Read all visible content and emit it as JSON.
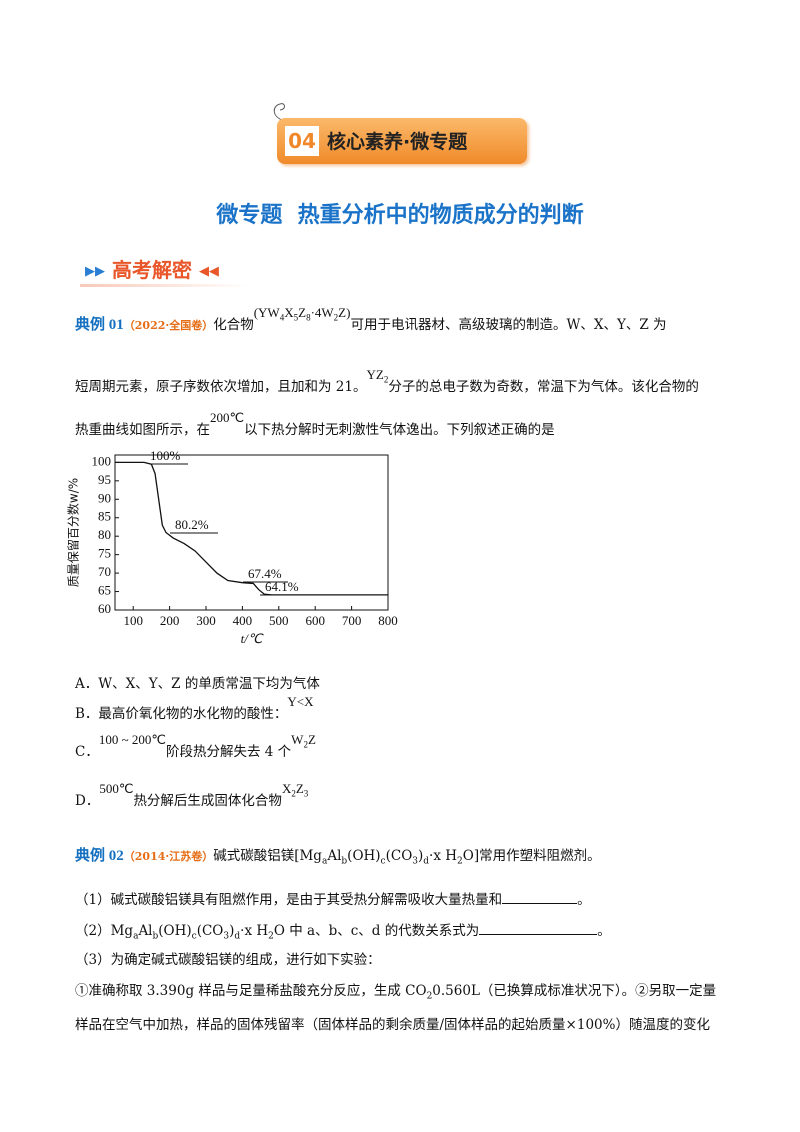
{
  "badge": {
    "number": "04",
    "text": "核心素养·微专题"
  },
  "title": "微专题  热重分析中的物质成分的判断",
  "section": "高考解密",
  "example1": {
    "label": "典例 01",
    "source": "（2022·全国卷）",
    "lines": [
      [
        "化合物",
        {
          "f": [
            "(YW",
            {
              "sub": "4"
            },
            "X",
            {
              "sub": "5"
            },
            "Z",
            {
              "sub": "8"
            },
            "·4W",
            {
              "sub": "2"
            },
            "Z)"
          ]
        },
        "可用于电讯器材、高级玻璃的制造。W、X、Y、Z 为"
      ],
      [
        "短周期元素，原子序数依次增加，且加和为 21。",
        {
          "f": [
            "YZ",
            {
              "sub": "2"
            }
          ]
        },
        "分子的总电子数为奇数，常温下为气体。该化合物的"
      ],
      [
        "热重曲线如图所示，在",
        {
          "f": [
            "200℃"
          ]
        },
        "以下热分解时无刺激性气体逸出。下列叙述正确的是"
      ]
    ],
    "options": [
      [
        "A．W、X、Y、Z 的单质常温下均为气体"
      ],
      [
        "B．最高价氧化物的水化物的酸性：",
        {
          "f": [
            "Y<X"
          ]
        }
      ],
      [
        "C．",
        {
          "f": [
            "100 ~ 200℃"
          ]
        },
        "阶段热分解失去 4 个",
        {
          "f": [
            "W",
            {
              "sub": "2"
            },
            "Z"
          ]
        }
      ],
      [
        "D．",
        {
          "f": [
            "500℃"
          ]
        },
        "热分解后生成固体化合物",
        {
          "f": [
            "X",
            {
              "sub": "2"
            },
            "Z",
            {
              "sub": "3"
            }
          ]
        }
      ]
    ]
  },
  "chart_data": {
    "type": "line",
    "x_label": "t/℃",
    "y_label": "质量保留百分数w/%",
    "x": [
      50,
      130,
      150,
      160,
      170,
      180,
      190,
      210,
      240,
      270,
      300,
      330,
      360,
      400,
      430,
      445,
      460,
      480,
      800
    ],
    "series": [
      {
        "color": "#111111",
        "values": [
          100,
          100,
          99.5,
          97,
          90,
          83,
          81,
          79.5,
          78,
          76,
          73,
          70,
          68,
          67.4,
          67.2,
          65.5,
          64.3,
          64.1,
          64.1
        ]
      }
    ],
    "annotations": [
      "100%",
      "80.2%",
      "67.4%",
      "64.1%"
    ],
    "xlim": [
      50,
      800
    ],
    "ylim": [
      60,
      102
    ],
    "xticks": [
      100,
      200,
      300,
      400,
      500,
      600,
      700,
      800
    ],
    "yticks": [
      60,
      65,
      70,
      75,
      80,
      85,
      90,
      95,
      100
    ]
  },
  "example2": {
    "label": "典例 02",
    "source": "（2014·江苏卷）",
    "intro": [
      "碱式碳酸铝镁[Mg",
      {
        "sub": "a"
      },
      "Al",
      {
        "sub": "b"
      },
      "(OH)",
      {
        "sub": "c"
      },
      "(CO",
      {
        "sub": "3"
      },
      ")",
      {
        "sub": "d"
      },
      "·x H",
      {
        "sub": "2"
      },
      "O]常用作塑料阻燃剂。"
    ],
    "lines": [
      {
        "before": [
          "（1）碱式碳酸铝镁具有阻燃作用，是由于其受热分解需吸收大量热量和"
        ],
        "after": [
          "。"
        ]
      },
      {
        "before": [
          "（2）Mg",
          {
            "sub": "a"
          },
          "Al",
          {
            "sub": "b"
          },
          "(OH)",
          {
            "sub": "c"
          },
          "(CO",
          {
            "sub": "3"
          },
          ")",
          {
            "sub": "d"
          },
          "·x H",
          {
            "sub": "2"
          },
          "O 中 a、b、c、d 的代数关系式为"
        ],
        "after": [
          "。"
        ]
      },
      [
        "（3）为确定碱式碳酸铝镁的组成，进行如下实验："
      ],
      [
        "①准确称取 3.390g 样品与足量稀盐酸充分反应，生成 CO",
        {
          "sub": "2"
        },
        "0.560L（已换算成标准状况下）。②另取一定量"
      ],
      [
        "样品在空气中加热，样品的固体残留率（固体样品的剩余质量/固体样品的起始质量×100%）随温度的变化"
      ]
    ]
  }
}
